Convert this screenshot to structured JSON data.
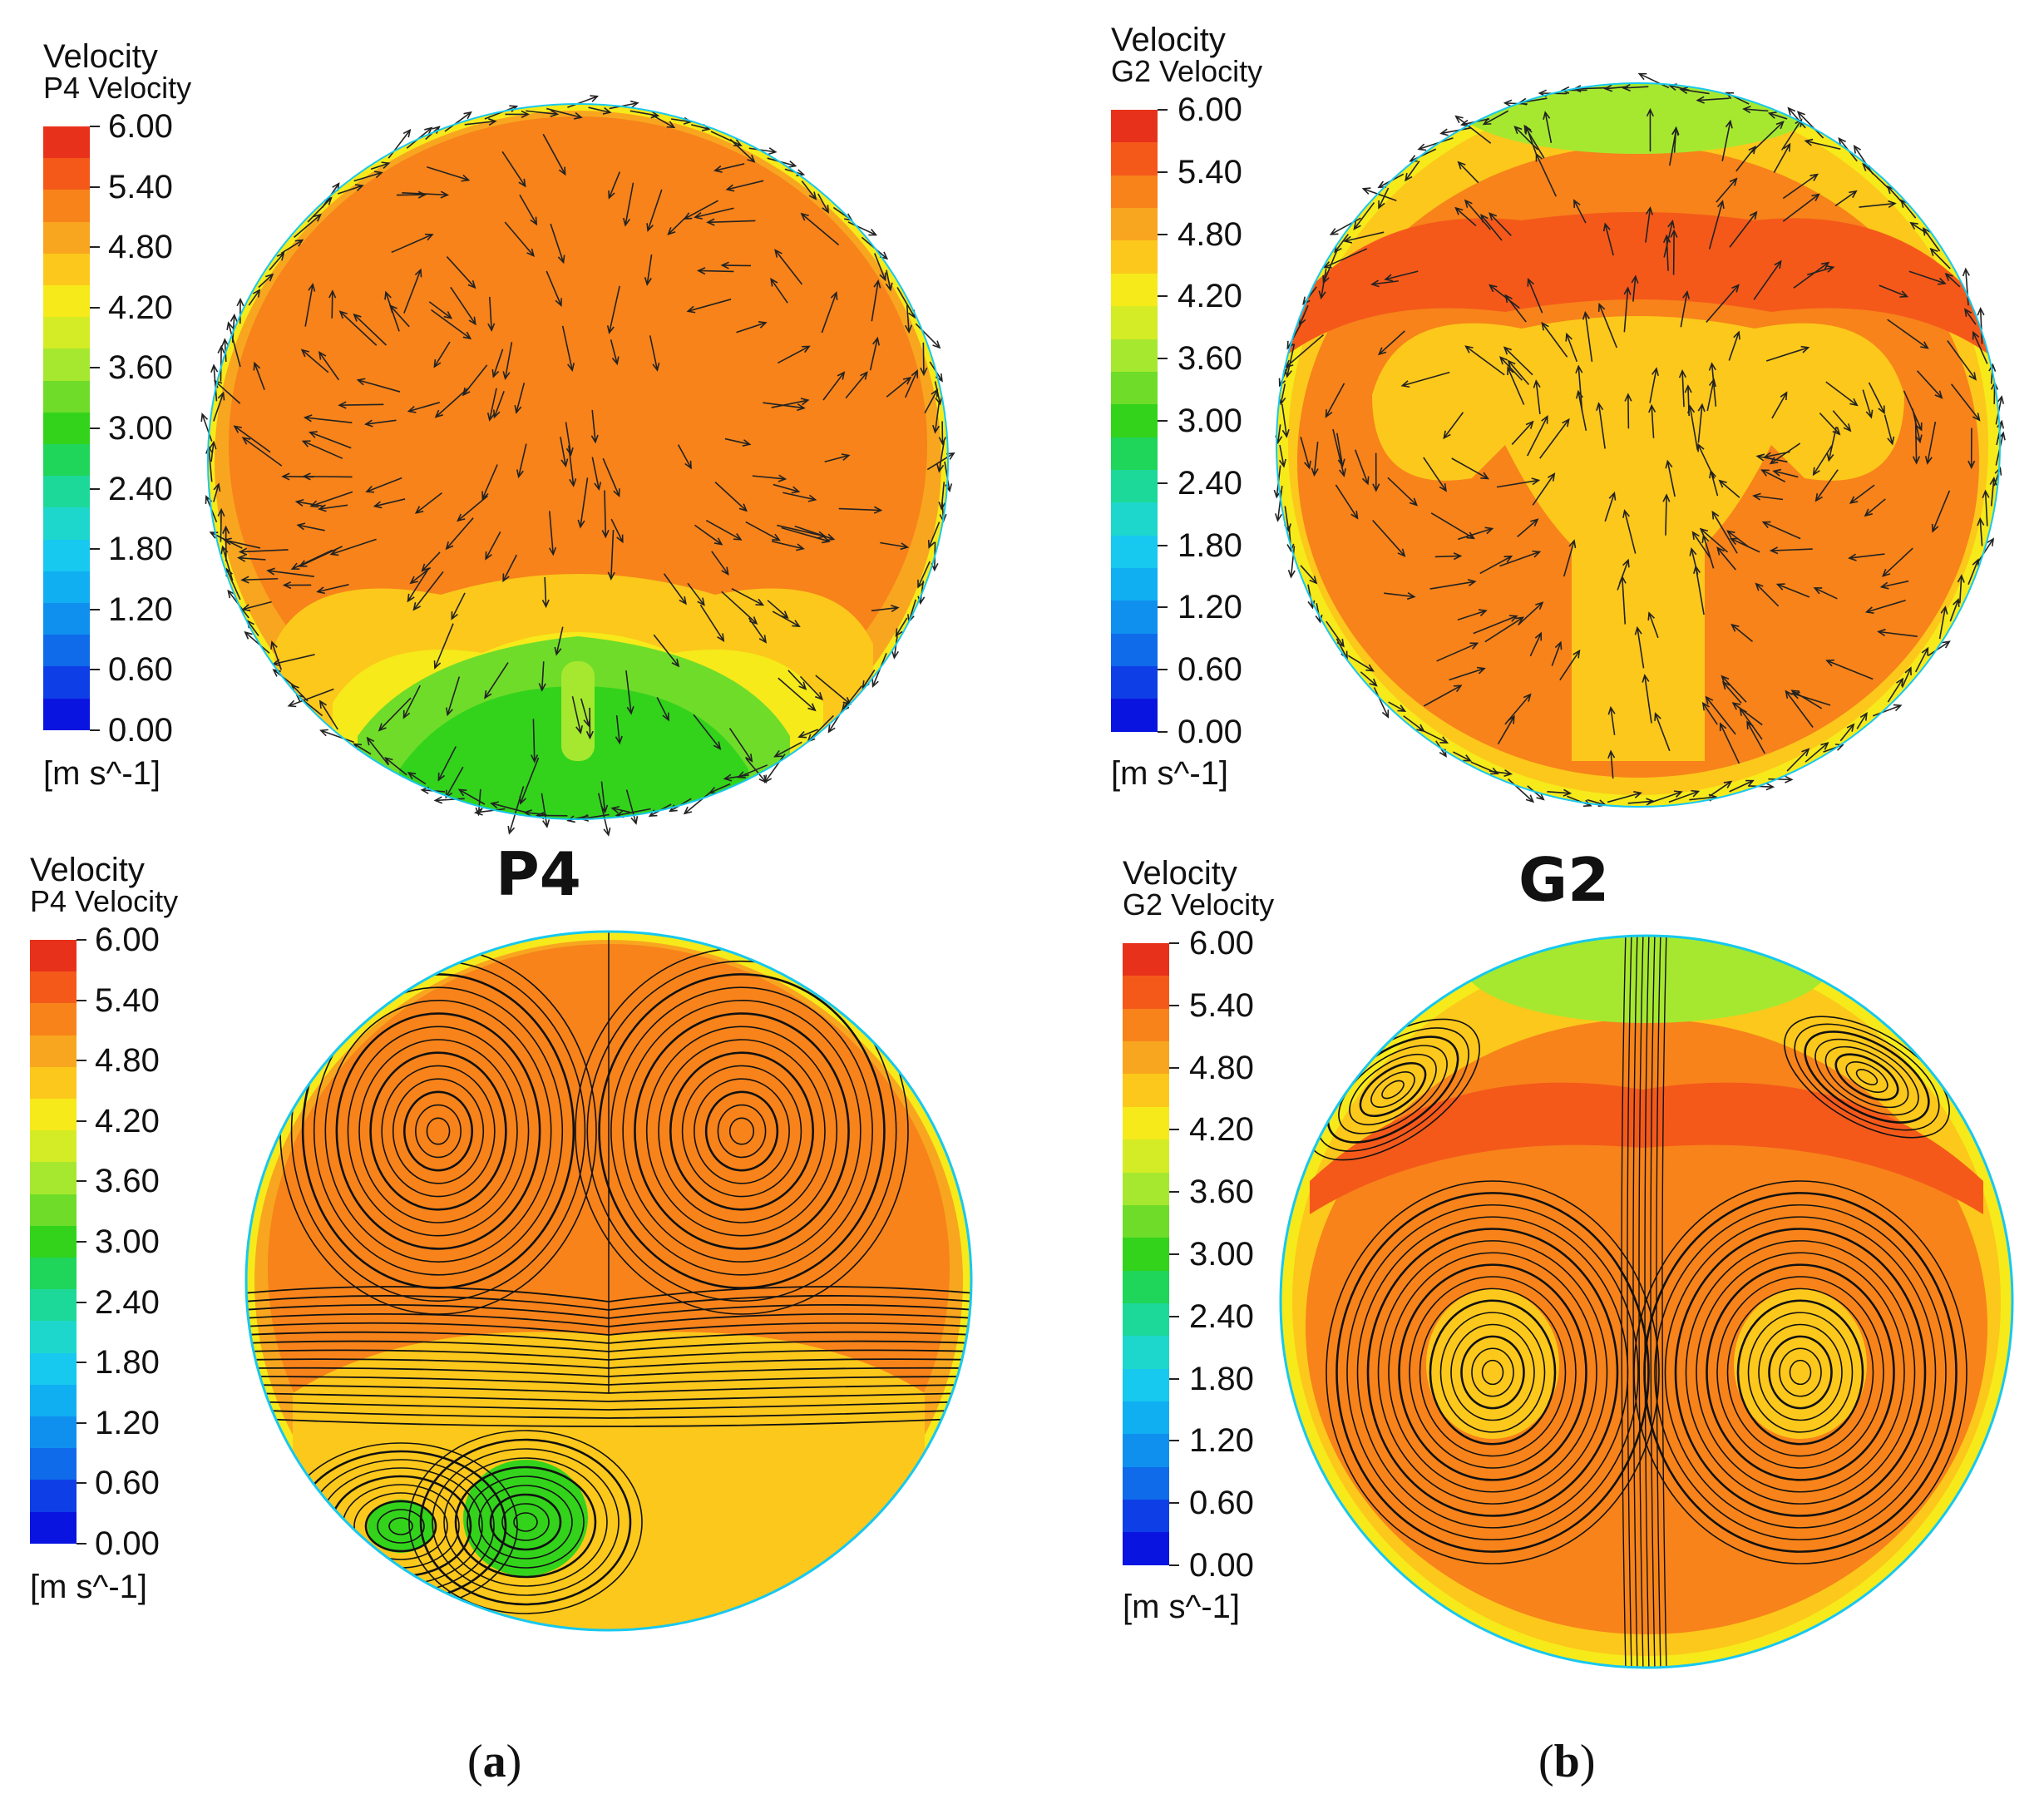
{
  "legend": {
    "title": "Velocity",
    "ticks": [
      "6.00",
      "5.40",
      "4.80",
      "4.20",
      "3.60",
      "3.00",
      "2.40",
      "1.80",
      "1.20",
      "0.60",
      "0.00"
    ],
    "unit": "[m s^-1]",
    "colors": [
      "#e8311a",
      "#f4591a",
      "#f7831a",
      "#f8a61f",
      "#fcc81b",
      "#f6ea1a",
      "#d4ec25",
      "#a6e830",
      "#6fdc2a",
      "#33d31c",
      "#1fd55a",
      "#1dd999",
      "#1ed7cc",
      "#17c8ef",
      "#10aff2",
      "#1090ee",
      "#106bea",
      "#0e3fe6",
      "#0a14e0"
    ]
  },
  "panels": {
    "p4_vectors": {
      "subtitle": "P4 Velocity"
    },
    "g2_vectors": {
      "subtitle": "G2 Velocity"
    },
    "p4_streamlines": {
      "subtitle": "P4 Velocity"
    },
    "g2_streamlines": {
      "subtitle": "G2 Velocity"
    }
  },
  "titles": {
    "left": "P4",
    "right": "G2"
  },
  "labels": {
    "a_open": "(",
    "a": "a",
    "a_close": ")",
    "b_open": "(",
    "b": "b",
    "b_close": ")"
  }
}
